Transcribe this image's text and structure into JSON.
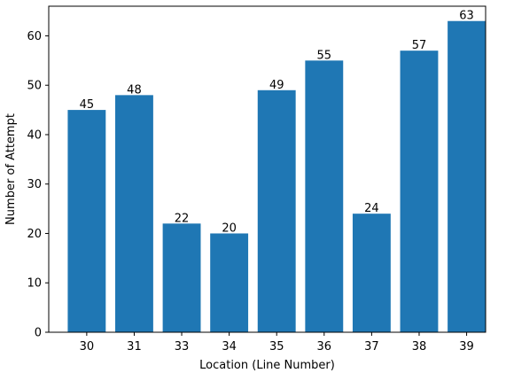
{
  "chart_data": {
    "type": "bar",
    "title": "",
    "xlabel": "Location (Line Number)",
    "ylabel": "Number of Attempt",
    "categories": [
      "30",
      "31",
      "33",
      "34",
      "35",
      "36",
      "37",
      "38",
      "39"
    ],
    "values": [
      45,
      48,
      22,
      20,
      49,
      55,
      24,
      57,
      63
    ],
    "ylim": [
      0,
      66
    ],
    "yticks": [
      0,
      10,
      20,
      30,
      40,
      50,
      60
    ],
    "bar_color": "#1f77b4",
    "grid": false,
    "legend": "none",
    "show_value_labels": true
  }
}
